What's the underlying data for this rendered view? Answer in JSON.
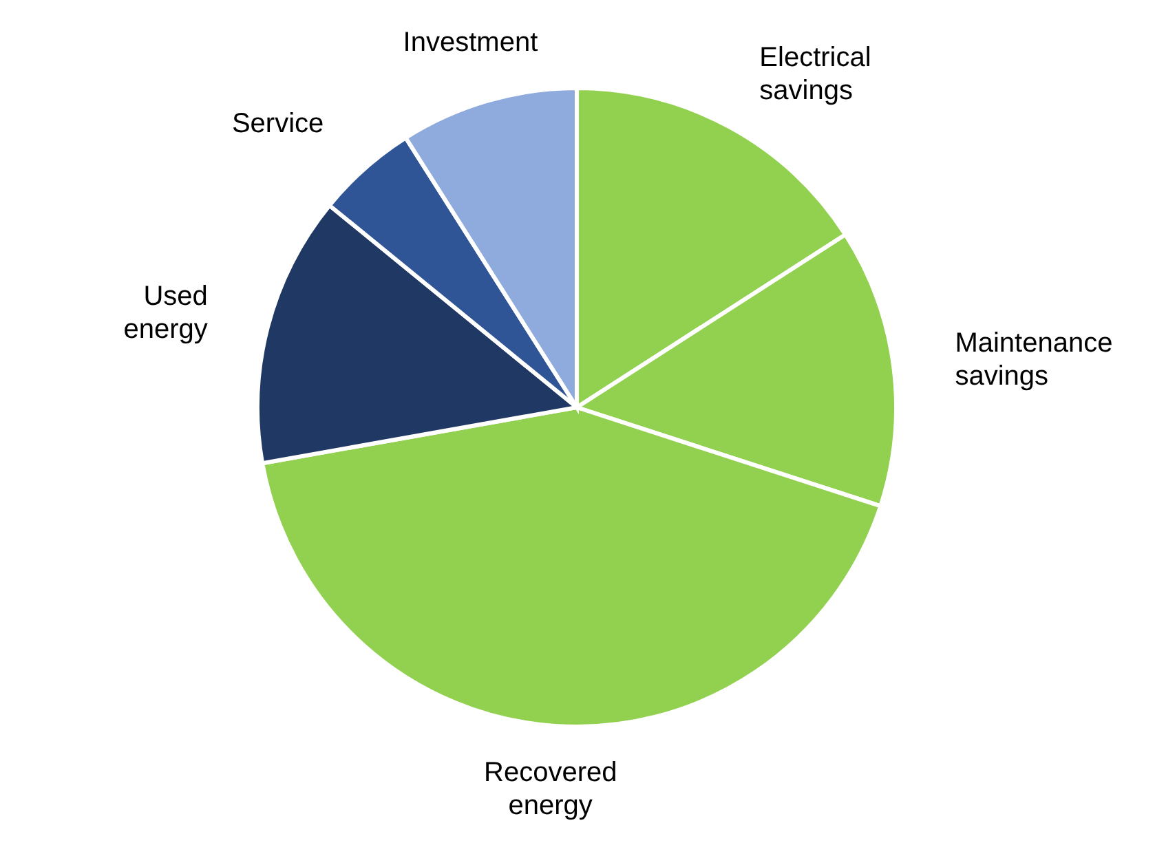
{
  "chart_data": {
    "type": "pie",
    "categories": [
      "Electrical savings",
      "Maintenance savings",
      "Recovered energy",
      "Used energy",
      "Service",
      "Investment"
    ],
    "values": [
      15.9,
      14.1,
      42.2,
      13.7,
      5.1,
      9.0
    ],
    "colors": [
      "#92d050",
      "#92d050",
      "#92d050",
      "#203864",
      "#2f5597",
      "#8faadc"
    ],
    "legend": false
  }
}
